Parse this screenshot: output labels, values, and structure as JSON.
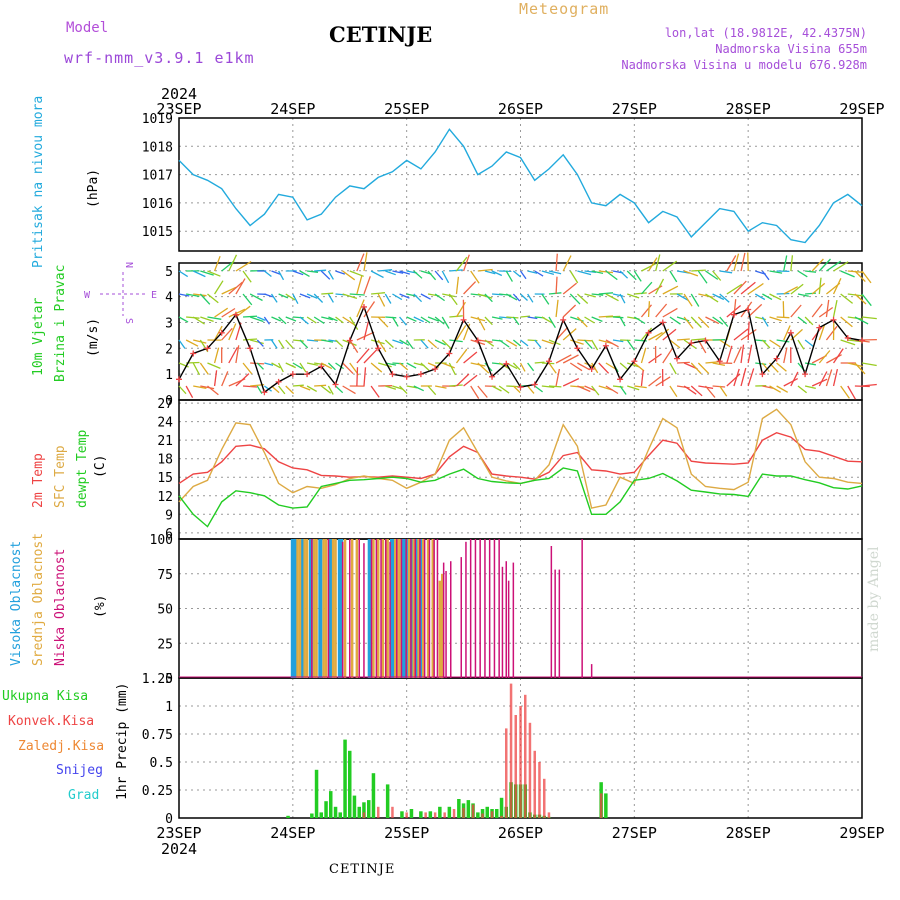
{
  "header": {
    "model_label": "Model",
    "model_name": "wrf-nmm_v3.9.1 e1km",
    "station": "CETINJE",
    "meteogram": "Meteogram",
    "lonlat": "lon,lat (18.9812E, 42.4375N)",
    "altitude": "Nadmorska Visina 655m",
    "altitude_model": "Nadmorska Visina u modelu 676.928m"
  },
  "footer": {
    "station": "CETINJE",
    "watermark": "made by Angel"
  },
  "colors": {
    "pressure": "#22aadd",
    "temp2m": "#ee4444",
    "sfc_temp": "#ddaa44",
    "dewpoint": "#22cc22",
    "cloud_high": "#22a0dd",
    "cloud_mid": "#e0aa40",
    "cloud_low": "#cc1177",
    "precip_total": "#22cc22",
    "precip_conv": "#ee4444",
    "precip_ice": "#ee8833",
    "snow": "#4444ee",
    "graupel": "#22cccc",
    "purple": "#a64fd9"
  },
  "chart_data": [
    {
      "type": "line",
      "ylabel": "Pritisak na nivou mora",
      "unit": "(hPa)",
      "x_ticks": [
        "23SEP",
        "24SEP",
        "25SEP",
        "26SEP",
        "27SEP",
        "28SEP",
        "29SEP"
      ],
      "x_year": "2024",
      "ylim": [
        1014.3,
        1019
      ],
      "yticks": [
        1015,
        1016,
        1017,
        1018,
        1019
      ],
      "x": [
        0,
        3,
        6,
        9,
        12,
        15,
        18,
        21,
        24,
        27,
        30,
        33,
        36,
        39,
        42,
        45,
        48,
        51,
        54,
        57,
        60,
        63,
        66,
        69,
        72,
        75,
        78,
        81,
        84,
        87,
        90,
        93,
        96,
        99,
        102,
        105,
        108,
        111,
        114,
        117,
        120,
        123,
        126,
        129,
        132,
        135,
        138,
        141,
        144
      ],
      "values": [
        1017.5,
        1017.0,
        1016.8,
        1016.5,
        1015.8,
        1015.2,
        1015.6,
        1016.3,
        1016.2,
        1015.4,
        1015.6,
        1016.2,
        1016.6,
        1016.5,
        1016.9,
        1017.1,
        1017.5,
        1017.2,
        1017.8,
        1018.6,
        1018.0,
        1017.0,
        1017.3,
        1017.8,
        1017.6,
        1016.8,
        1017.2,
        1017.7,
        1017.0,
        1016.0,
        1015.9,
        1016.3,
        1016.0,
        1015.3,
        1015.7,
        1015.5,
        1014.8,
        1015.3,
        1015.8,
        1015.7,
        1015.0,
        1015.3,
        1015.2,
        1014.7,
        1014.6,
        1015.2,
        1016.0,
        1016.3,
        1015.9
      ],
      "grid": true
    },
    {
      "type": "line",
      "title": "10m Vjetar",
      "ylabel": "Brzina i Pravac",
      "unit": "(m/s)",
      "compass": {
        "n": "N",
        "w": "W",
        "e": "E",
        "s": "S"
      },
      "ylim": [
        0,
        5.3
      ],
      "yticks": [
        0,
        1,
        2,
        3,
        4,
        5
      ],
      "x": [
        0,
        3,
        6,
        9,
        12,
        15,
        18,
        21,
        24,
        27,
        30,
        33,
        36,
        39,
        42,
        45,
        48,
        51,
        54,
        57,
        60,
        63,
        66,
        69,
        72,
        75,
        78,
        81,
        84,
        87,
        90,
        93,
        96,
        99,
        102,
        105,
        108,
        111,
        114,
        117,
        120,
        123,
        126,
        129,
        132,
        135,
        138,
        141,
        144
      ],
      "values": [
        0.8,
        1.8,
        2.0,
        2.6,
        3.3,
        2.0,
        0.3,
        0.7,
        1.0,
        1.0,
        1.3,
        0.6,
        2.3,
        3.6,
        2.0,
        1.0,
        0.9,
        1.0,
        1.2,
        1.8,
        3.1,
        2.3,
        0.9,
        1.4,
        0.5,
        0.6,
        1.5,
        3.1,
        2.0,
        1.2,
        2.1,
        0.8,
        1.5,
        2.6,
        3.0,
        1.6,
        2.2,
        2.3,
        1.5,
        3.3,
        3.5,
        1.0,
        1.6,
        2.6,
        1.0,
        2.8,
        3.1,
        2.4,
        2.3
      ],
      "grid": true
    },
    {
      "type": "line",
      "series": [
        {
          "name": "2m Temp",
          "values": [
            14,
            15.5,
            15.8,
            17.5,
            20.0,
            20.2,
            19.6,
            17.5,
            16.5,
            16.2,
            15.3,
            15.2,
            15.0,
            15.1,
            15.0,
            15.2,
            15.0,
            14.8,
            15.5,
            18.3,
            20.0,
            19.0,
            15.5,
            15.2,
            15.0,
            14.7,
            15.8,
            18.5,
            19.0,
            16.2,
            16.0,
            15.5,
            15.8,
            18.5,
            21.0,
            20.5,
            17.6,
            17.3,
            17.2,
            17.1,
            17.3,
            21.0,
            22.2,
            21.5,
            19.5,
            19.2,
            18.4,
            17.6,
            17.5
          ]
        },
        {
          "name": "SFC Temp",
          "values": [
            11,
            13.5,
            14.5,
            19.5,
            23.8,
            23.5,
            19.0,
            14.0,
            12.5,
            13.5,
            13.2,
            13.8,
            14.8,
            15.2,
            14.8,
            14.5,
            13.2,
            14.2,
            15.5,
            21.0,
            23.0,
            19.0,
            15.0,
            14.4,
            14.0,
            14.5,
            17.0,
            23.5,
            20.0,
            10.0,
            10.5,
            15.0,
            14.0,
            19.5,
            24.5,
            23.0,
            15.5,
            13.5,
            13.2,
            13.0,
            14.2,
            24.5,
            26.0,
            23.5,
            17.5,
            15.0,
            14.8,
            14.2,
            14.0
          ]
        },
        {
          "name": "dewpt Temp",
          "values": [
            12,
            9.0,
            7.0,
            11.0,
            12.8,
            12.5,
            12.0,
            10.5,
            10.0,
            10.2,
            13.5,
            14.0,
            14.5,
            14.6,
            14.8,
            15.0,
            14.8,
            14.2,
            14.5,
            15.5,
            16.3,
            14.8,
            14.3,
            14.1,
            14.0,
            14.5,
            14.8,
            16.5,
            16.0,
            9.0,
            9.0,
            11.0,
            14.5,
            14.8,
            15.6,
            14.4,
            12.9,
            12.6,
            12.3,
            12.2,
            11.9,
            15.5,
            15.2,
            15.2,
            14.6,
            14.1,
            13.3,
            13.1,
            13.6
          ]
        }
      ],
      "x": [
        0,
        3,
        6,
        9,
        12,
        15,
        18,
        21,
        24,
        27,
        30,
        33,
        36,
        39,
        42,
        45,
        48,
        51,
        54,
        57,
        60,
        63,
        66,
        69,
        72,
        75,
        78,
        81,
        84,
        87,
        90,
        93,
        96,
        99,
        102,
        105,
        108,
        111,
        114,
        117,
        120,
        123,
        126,
        129,
        132,
        135,
        138,
        141,
        144
      ],
      "unit": "(C)",
      "ylim": [
        5,
        27.5
      ],
      "yticks": [
        6,
        9,
        12,
        15,
        18,
        21,
        24,
        27
      ],
      "grid": true
    },
    {
      "type": "bar",
      "series": [
        {
          "name": "Visoka Oblacnost",
          "x": [
            24.0,
            24.3,
            24.6,
            26.0,
            27.8,
            29.8,
            32.0,
            33.9,
            34.2,
            40.2,
            44.9,
            45.2,
            47.2,
            47.5,
            48.2,
            49.0,
            50.0,
            51.0
          ],
          "values": [
            100,
            100,
            100,
            100,
            100,
            100,
            100,
            100,
            100,
            100,
            100,
            100,
            100,
            100,
            100,
            100,
            100,
            100
          ]
        },
        {
          "name": "Srednja Oblacnost",
          "x": [
            25.0,
            25.5,
            26.5,
            27.0,
            28.5,
            29.0,
            30.5,
            31.0,
            32.5,
            33.0,
            35.0,
            36.5,
            37.5,
            41.0,
            42.0,
            43.0,
            44.0,
            45.6,
            46.0,
            46.5,
            48.5,
            49.5,
            50.5,
            51.5,
            52.5,
            53.5,
            55.0,
            55.5
          ],
          "values": [
            100,
            100,
            100,
            100,
            100,
            100,
            100,
            100,
            100,
            100,
            100,
            100,
            100,
            100,
            100,
            100,
            100,
            100,
            100,
            100,
            100,
            100,
            100,
            100,
            100,
            100,
            70,
            75
          ]
        },
        {
          "name": "Niska Oblacnost",
          "x": [
            28.0,
            31.5,
            34.5,
            36.0,
            38.0,
            39.0,
            40.6,
            41.6,
            42.6,
            43.6,
            44.5,
            45.9,
            46.9,
            47.9,
            48.9,
            49.8,
            50.8,
            51.8,
            52.8,
            53.8,
            54.5,
            55.8,
            56.3,
            57.3,
            59.5,
            60.5,
            61.5,
            62.5,
            63.5,
            64.5,
            65.5,
            66.5,
            67.5,
            68.2,
            69.0,
            69.5,
            70.5,
            78.5,
            79.3,
            80.2,
            85.0,
            87.0
          ],
          "values": [
            100,
            100,
            98,
            100,
            100,
            97,
            100,
            100,
            100,
            100,
            98,
            100,
            100,
            100,
            100,
            100,
            100,
            100,
            100,
            100,
            100,
            83,
            77,
            84,
            87,
            98,
            100,
            100,
            100,
            100,
            100,
            100,
            100,
            80,
            84,
            70,
            83,
            95,
            78,
            78,
            100,
            10
          ]
        }
      ],
      "unit": "(%)",
      "ylim": [
        0,
        100
      ],
      "yticks": [
        0,
        25,
        50,
        75,
        100
      ],
      "grid": true
    },
    {
      "type": "bar",
      "series": [
        {
          "name": "Ukupna Kisa",
          "x": [
            23.0,
            28.0,
            29.0,
            30.0,
            31.0,
            32.0,
            33.0,
            34.0,
            35.0,
            36.0,
            37.0,
            38.0,
            39.0,
            40.0,
            41.0,
            44.0,
            47.0,
            49.0,
            51.0,
            53.0,
            55.0,
            57.0,
            59.0,
            60.0,
            61.0,
            62.0,
            63.0,
            64.0,
            65.0,
            66.0,
            67.0,
            68.0,
            69.0,
            70.0,
            71.0,
            72.0,
            73.0,
            74.0,
            75.0,
            76.0,
            77.0,
            78.0,
            89.0,
            90.0
          ],
          "values": [
            0.02,
            0.04,
            0.43,
            0.05,
            0.15,
            0.24,
            0.1,
            0.05,
            0.7,
            0.6,
            0.2,
            0.1,
            0.14,
            0.16,
            0.4,
            0.3,
            0.06,
            0.08,
            0.06,
            0.06,
            0.1,
            0.1,
            0.17,
            0.13,
            0.16,
            0.13,
            0.05,
            0.08,
            0.1,
            0.08,
            0.08,
            0.18,
            0.1,
            0.32,
            0.3,
            0.3,
            0.3,
            0.05,
            0.03,
            0.03,
            0.02,
            0.01,
            0.32,
            0.22
          ]
        },
        {
          "name": "Konvek.Kisa",
          "x": [
            39.0,
            42.0,
            45.0,
            48.0,
            52.0,
            54.0,
            56.0,
            58.0,
            60.0,
            62.0,
            64.0,
            66.0,
            68.0,
            69.0,
            70.0,
            71.0,
            72.0,
            73.0,
            74.0,
            75.0,
            76.0,
            77.0,
            78.0,
            89.0
          ],
          "values": [
            0.05,
            0.1,
            0.1,
            0.05,
            0.05,
            0.05,
            0.05,
            0.08,
            0.09,
            0.12,
            0.04,
            0.06,
            0.02,
            0.8,
            1.2,
            0.92,
            1.0,
            1.1,
            0.85,
            0.6,
            0.5,
            0.35,
            0.05,
            0.22
          ]
        }
      ],
      "legend": [
        "Ukupna Kisa",
        "Konvek.Kisa",
        "Zaledj.Kisa",
        "Snijeg",
        "Grad"
      ],
      "ylabel": "1hr Precip",
      "unit": "(mm)",
      "x_ticks": [
        "23SEP",
        "24SEP",
        "25SEP",
        "26SEP",
        "27SEP",
        "28SEP",
        "29SEP"
      ],
      "x_year": "2024",
      "ylim": [
        0,
        1.25
      ],
      "yticks": [
        0,
        0.25,
        0.5,
        0.75,
        1,
        1.25
      ],
      "ytick_labels": [
        "0",
        "0.25",
        "0.5",
        "0.75",
        "1",
        "1.25"
      ],
      "grid": true
    }
  ]
}
